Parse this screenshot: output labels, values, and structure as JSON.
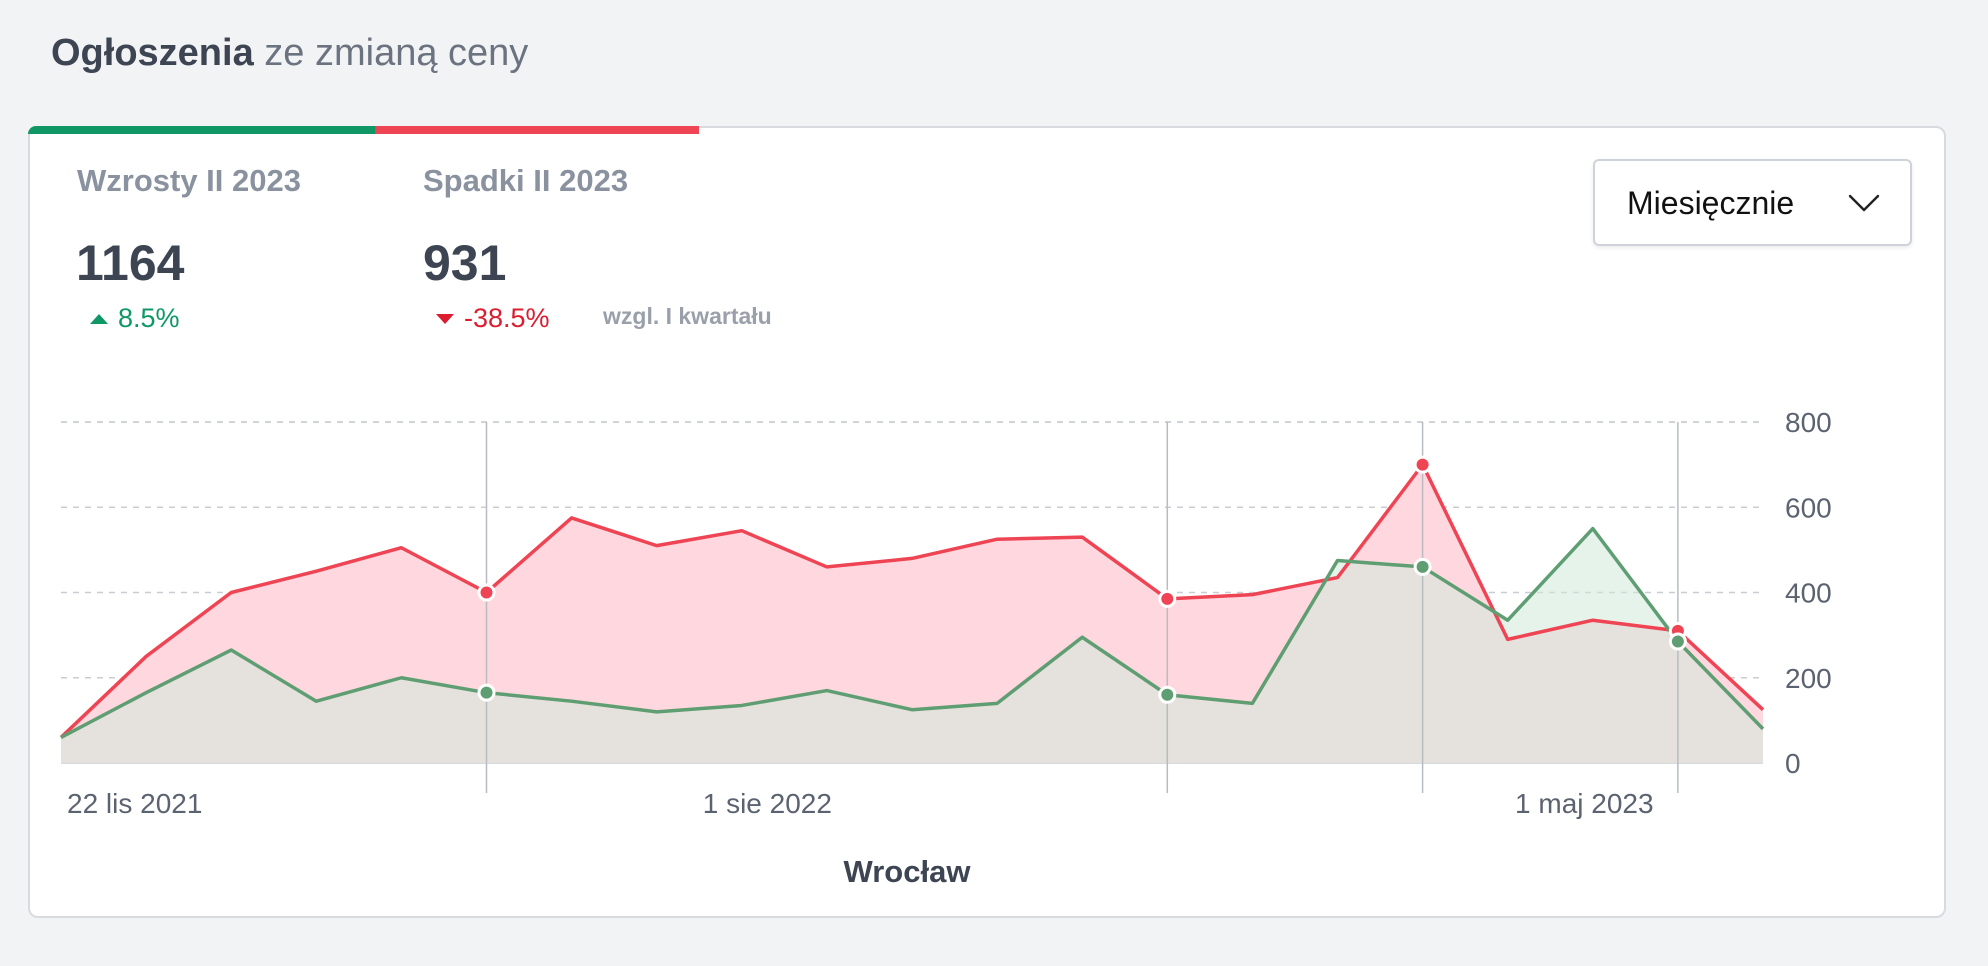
{
  "header": {
    "title_strong": "Ogłoszenia",
    "title_rest": "ze zmianą ceny"
  },
  "stats": {
    "increases": {
      "label": "Wzrosty II 2023",
      "value": "1164",
      "change": "8.5%",
      "color": "#0f9866"
    },
    "decreases": {
      "label": "Spadki II 2023",
      "value": "931",
      "change": "-38.5%",
      "color": "#ef4453"
    },
    "comparison_note": "wzgl. I kwartału"
  },
  "period_select": {
    "selected": "Miesięcznie",
    "icon": "chevron-down-icon"
  },
  "chart_data": {
    "type": "area",
    "title": "Wrocław",
    "x": [
      "2021-11-22",
      "2021-12-22",
      "2022-01-22",
      "2022-02-22",
      "2022-03-22",
      "2022-04-22",
      "2022-05-22",
      "2022-06-22",
      "2022-07-22",
      "2022-08-22",
      "2022-09-22",
      "2022-10-22",
      "2022-11-22",
      "2022-12-22",
      "2023-01-22",
      "2023-02-22",
      "2023-03-22",
      "2023-04-22",
      "2023-05-22",
      "2023-06-22",
      "2023-07-22"
    ],
    "x_tick_labels": [
      "22 lis 2021",
      "1 sie 2022",
      "1 maj 2023"
    ],
    "y_ticks": [
      0,
      200,
      400,
      600,
      800
    ],
    "ylim": [
      0,
      800
    ],
    "grid": true,
    "series": [
      {
        "color": "#ef4453",
        "fill": "#ffd6dd",
        "values": [
          60,
          250,
          400,
          450,
          505,
          400,
          575,
          510,
          545,
          460,
          480,
          525,
          530,
          385,
          395,
          435,
          700,
          290,
          335,
          310,
          125
        ],
        "markers": [
          5,
          13,
          16,
          19
        ]
      },
      {
        "color": "#5f9e72",
        "fill": "#cfead8",
        "values": [
          60,
          165,
          265,
          145,
          200,
          165,
          145,
          120,
          135,
          170,
          125,
          140,
          295,
          160,
          140,
          475,
          460,
          335,
          550,
          285,
          80
        ],
        "markers": [
          5,
          13,
          16,
          19
        ]
      }
    ]
  }
}
